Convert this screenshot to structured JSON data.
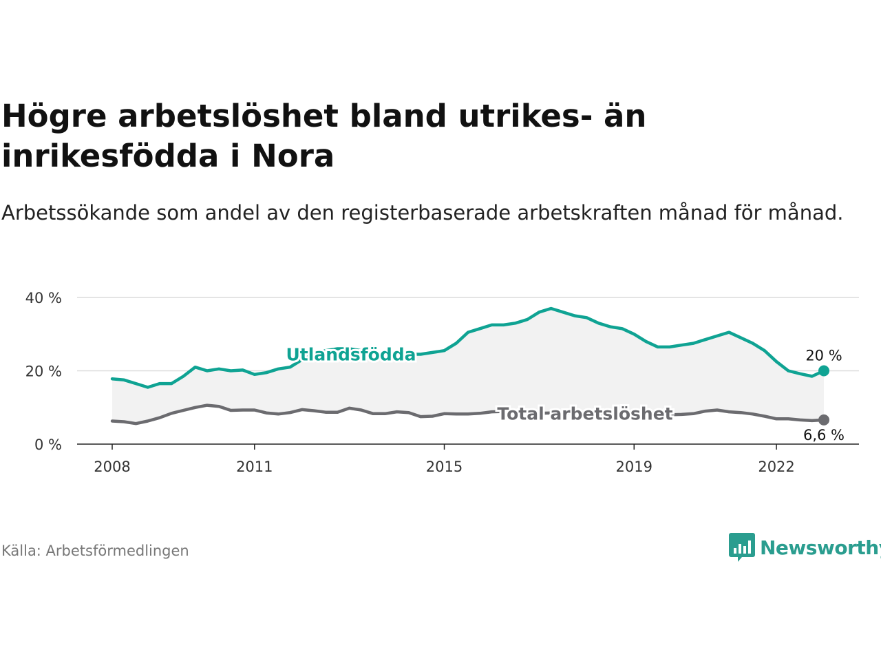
{
  "title": "Högre arbetslöshet bland utrikes- än inrikesfödda i Nora",
  "subtitle": "Arbetssökande som andel av den registerbaserade arbetskraften månad för månad.",
  "source": "Källa: Arbetsförmedlingen",
  "brand": {
    "name": "Newsworthy",
    "logo_icon": "bar-chart-speech-bubble-icon"
  },
  "colors": {
    "foreign": "#0fa393",
    "total": "#6b6b6f",
    "band": "#f2f2f2",
    "grid": "#dcdcdc"
  },
  "chart_data": {
    "type": "line",
    "title": "Högre arbetslöshet bland utrikes- än inrikesfödda i Nora",
    "xlabel": "",
    "ylabel": "",
    "x": [
      2008.0,
      2008.25,
      2008.5,
      2008.75,
      2009.0,
      2009.25,
      2009.5,
      2009.75,
      2010.0,
      2010.25,
      2010.5,
      2010.75,
      2011.0,
      2011.25,
      2011.5,
      2011.75,
      2012.0,
      2012.25,
      2012.5,
      2012.75,
      2013.0,
      2013.25,
      2013.5,
      2013.75,
      2014.0,
      2014.25,
      2014.5,
      2014.75,
      2015.0,
      2015.25,
      2015.5,
      2015.75,
      2016.0,
      2016.25,
      2016.5,
      2016.75,
      2017.0,
      2017.25,
      2017.5,
      2017.75,
      2018.0,
      2018.25,
      2018.5,
      2018.75,
      2019.0,
      2019.25,
      2019.5,
      2019.75,
      2020.0,
      2020.25,
      2020.5,
      2020.75,
      2021.0,
      2021.25,
      2021.5,
      2021.75,
      2022.0,
      2022.25,
      2022.5,
      2022.75,
      2023.0
    ],
    "series": [
      {
        "name": "Utlandsfödda",
        "values": [
          17.8,
          17.5,
          16.5,
          15.5,
          16.5,
          16.5,
          18.5,
          21,
          20,
          20.5,
          20,
          20.2,
          19,
          19.5,
          20.5,
          21,
          23,
          24.5,
          25.5,
          26,
          26,
          25.5,
          24.5,
          24,
          23.5,
          24.5,
          24.5,
          25,
          25.5,
          27.5,
          30.5,
          31.5,
          32.5,
          32.5,
          33,
          34,
          36,
          37,
          36,
          35,
          34.5,
          33,
          32,
          31.5,
          30,
          28,
          26.5,
          26.5,
          27,
          27.5,
          28.5,
          29.5,
          30.5,
          29,
          27.5,
          25.5,
          22.5,
          20,
          19.2,
          18.5,
          20
        ]
      },
      {
        "name": "Total arbetslöshet",
        "values": [
          6.3,
          6.1,
          5.6,
          6.3,
          7.2,
          8.4,
          9.2,
          10,
          10.6,
          10.3,
          9.2,
          9.3,
          9.3,
          8.5,
          8.2,
          8.6,
          9.4,
          9.1,
          8.7,
          8.7,
          9.8,
          9.3,
          8.3,
          8.3,
          8.8,
          8.6,
          7.5,
          7.6,
          8.3,
          8.2,
          8.2,
          8.4,
          8.8,
          8.9,
          8.6,
          8.5,
          8.4,
          8.5,
          8.4,
          8.4,
          8.2,
          8.1,
          8.1,
          8.2,
          8.3,
          8.2,
          8.1,
          8.0,
          8.1,
          8.3,
          9.0,
          9.3,
          8.8,
          8.6,
          8.2,
          7.6,
          6.9,
          6.9,
          6.6,
          6.4,
          6.6
        ]
      }
    ],
    "ylim": [
      0,
      40
    ],
    "yticks": [
      0,
      20,
      40
    ],
    "ytick_labels": [
      "0 %",
      "20 %",
      "40 %"
    ],
    "xticks": [
      2008,
      2011,
      2015,
      2019,
      2022
    ],
    "xtick_labels": [
      "2008",
      "2011",
      "2015",
      "2019",
      "2022"
    ],
    "end_labels": [
      "20 %",
      "6,6 %"
    ],
    "grid": true,
    "legend": "inline labels on lines"
  }
}
